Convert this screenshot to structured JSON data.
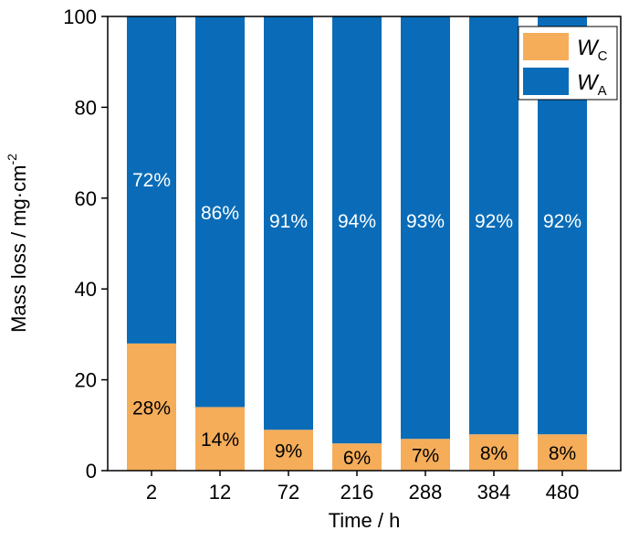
{
  "chart_data": {
    "type": "bar",
    "stacked": true,
    "categories": [
      "2",
      "12",
      "72",
      "216",
      "288",
      "384",
      "480"
    ],
    "series": [
      {
        "name": "WC",
        "legend_main": "W",
        "legend_sub": "C",
        "color": "#F5AD5A",
        "values": [
          28,
          14,
          9,
          6,
          7,
          8,
          8
        ],
        "labels": [
          "28%",
          "14%",
          "9%",
          "6%",
          "7%",
          "8%",
          "8%"
        ]
      },
      {
        "name": "WA",
        "legend_main": "W",
        "legend_sub": "A",
        "color": "#0A6CB8",
        "values": [
          72,
          86,
          91,
          94,
          93,
          92,
          92
        ],
        "labels": [
          "72%",
          "86%",
          "91%",
          "94%",
          "93%",
          "92%",
          "92%"
        ]
      }
    ],
    "xlabel": "Time / h",
    "ylabel": "Mass loss / mg·cm",
    "ylabel_sup": "-2",
    "ylim": [
      0,
      100
    ],
    "yticks": [
      0,
      20,
      40,
      60,
      80,
      100
    ],
    "legend_position": "top-right",
    "grid": false
  }
}
